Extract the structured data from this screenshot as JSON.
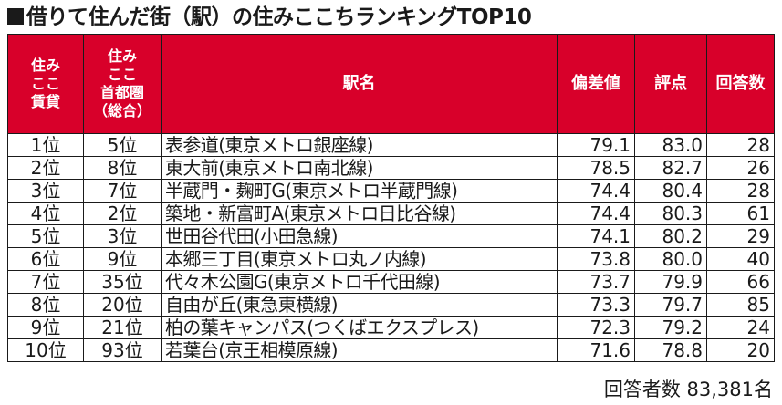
{
  "title": "借りて住んだ街（駅）の住みここちランキングTOP10",
  "columns": [
    "住み\nここ\n賃貸",
    "住み\nここ\n首都圏\n（総合）",
    "駅名",
    "偏差値",
    "評点",
    "回答数"
  ],
  "rows": [
    {
      "rent_rank": "1位",
      "metro_rank": "5位",
      "station": "表参道(東京メトロ銀座線)",
      "deviation": "79.1",
      "score": "83.0",
      "responses": "28"
    },
    {
      "rent_rank": "2位",
      "metro_rank": "8位",
      "station": "東大前(東京メトロ南北線)",
      "deviation": "78.5",
      "score": "82.7",
      "responses": "26"
    },
    {
      "rent_rank": "3位",
      "metro_rank": "7位",
      "station": "半蔵門・麹町G(東京メトロ半蔵門線)",
      "deviation": "74.4",
      "score": "80.4",
      "responses": "28"
    },
    {
      "rent_rank": "4位",
      "metro_rank": "2位",
      "station": "築地・新富町A(東京メトロ日比谷線)",
      "deviation": "74.4",
      "score": "80.3",
      "responses": "61"
    },
    {
      "rent_rank": "5位",
      "metro_rank": "3位",
      "station": "世田谷代田(小田急線)",
      "deviation": "74.1",
      "score": "80.2",
      "responses": "29"
    },
    {
      "rent_rank": "6位",
      "metro_rank": "9位",
      "station": "本郷三丁目(東京メトロ丸ノ内線)",
      "deviation": "73.8",
      "score": "80.0",
      "responses": "40"
    },
    {
      "rent_rank": "7位",
      "metro_rank": "35位",
      "station": "代々木公園G(東京メトロ千代田線)",
      "deviation": "73.7",
      "score": "79.9",
      "responses": "66"
    },
    {
      "rent_rank": "8位",
      "metro_rank": "20位",
      "station": "自由が丘(東急東横線)",
      "deviation": "73.3",
      "score": "79.7",
      "responses": "85"
    },
    {
      "rent_rank": "9位",
      "metro_rank": "21位",
      "station": "柏の葉キャンパス(つくばエクスプレス)",
      "deviation": "72.3",
      "score": "79.2",
      "responses": "24"
    },
    {
      "rent_rank": "10位",
      "metro_rank": "93位",
      "station": "若葉台(京王相模原線)",
      "deviation": "71.6",
      "score": "78.8",
      "responses": "20"
    }
  ],
  "footer": "回答者数 83,381名",
  "colors": {
    "header_bg": "#d8002a",
    "header_text": "#ffffff"
  }
}
